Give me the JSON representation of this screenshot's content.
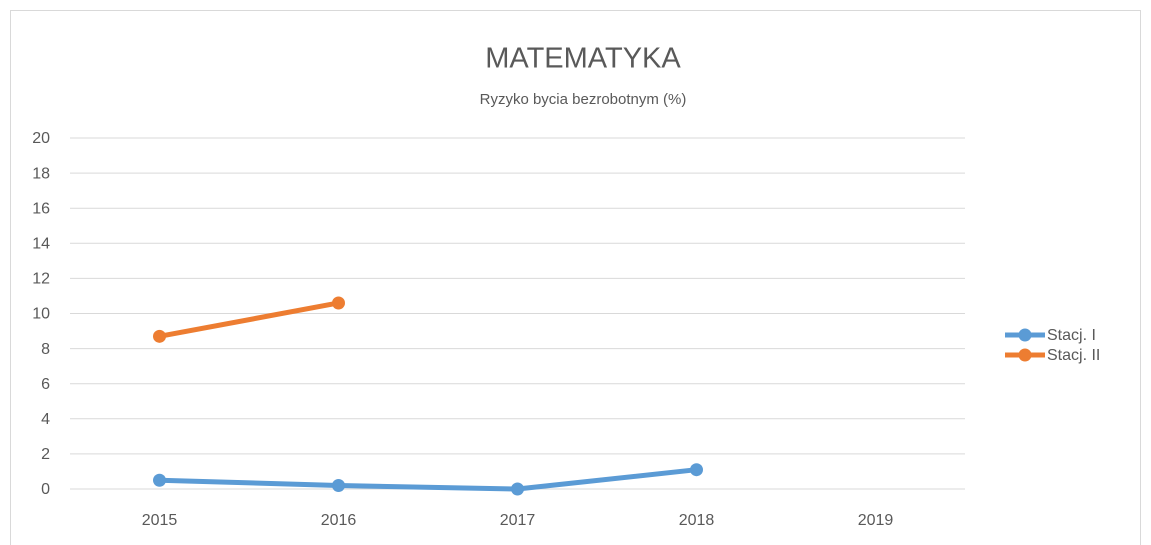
{
  "chart_data": {
    "type": "line",
    "title": "MATEMATYKA",
    "subtitle": "Ryzyko bycia bezrobotnym (%)",
    "categories": [
      "2015",
      "2016",
      "2017",
      "2018",
      "2019"
    ],
    "series": [
      {
        "name": "Stacj. I",
        "color": "#5b9bd5",
        "values": [
          0.5,
          0.2,
          0,
          1.1,
          null
        ]
      },
      {
        "name": "Stacj. II",
        "color": "#ed7d31",
        "values": [
          8.7,
          10.6,
          null,
          null,
          null
        ]
      }
    ],
    "ylim": [
      0,
      20
    ],
    "yticks": [
      0,
      2,
      4,
      6,
      8,
      10,
      12,
      14,
      16,
      18,
      20
    ],
    "grid": true,
    "legend": "right"
  }
}
